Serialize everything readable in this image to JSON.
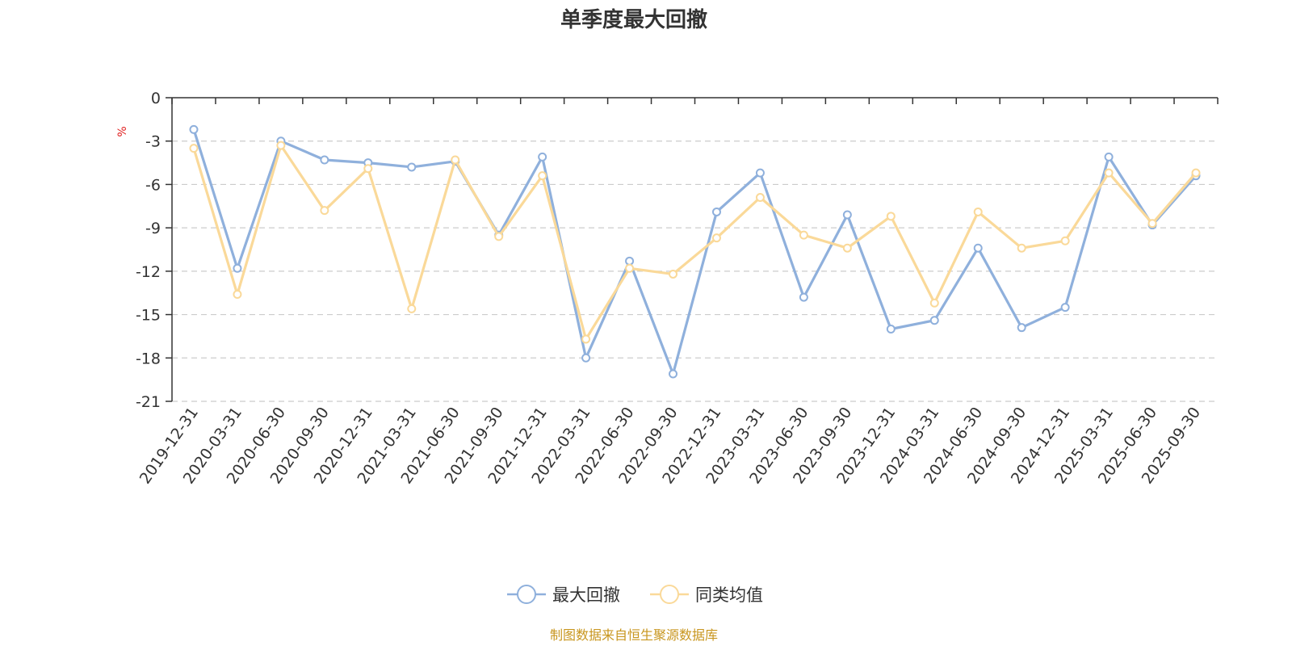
{
  "chart_data": {
    "type": "line",
    "title": "单季度最大回撤",
    "y_unit": "%",
    "ylim": [
      -21,
      0
    ],
    "yticks": [
      0,
      -3,
      -6,
      -9,
      -12,
      -15,
      -18,
      -21
    ],
    "grid": true,
    "legend_position": "bottom-center",
    "categories": [
      "2019-12-31",
      "2020-03-31",
      "2020-06-30",
      "2020-09-30",
      "2020-12-31",
      "2021-03-31",
      "2021-06-30",
      "2021-09-30",
      "2021-12-31",
      "2022-03-31",
      "2022-06-30",
      "2022-09-30",
      "2022-12-31",
      "2023-03-31",
      "2023-06-30",
      "2023-09-30",
      "2023-12-31",
      "2024-03-31",
      "2024-06-30",
      "2024-09-30",
      "2024-12-31",
      "2025-03-31",
      "2025-06-30",
      "2025-09-30"
    ],
    "series": [
      {
        "name": "最大回撤",
        "color": "#8fb0dc",
        "values": [
          -2.2,
          -11.8,
          -3.0,
          -4.3,
          -4.5,
          -4.8,
          -4.4,
          -9.5,
          -4.1,
          -18.0,
          -11.3,
          -19.1,
          -7.9,
          -5.2,
          -13.8,
          -8.1,
          -16.0,
          -15.4,
          -10.4,
          -15.9,
          -14.5,
          -4.1,
          -8.8,
          -5.4
        ]
      },
      {
        "name": "同类均值",
        "color": "#fad999",
        "values": [
          -3.5,
          -13.6,
          -3.3,
          -7.8,
          -4.9,
          -14.6,
          -4.3,
          -9.6,
          -5.4,
          -16.7,
          -11.8,
          -12.2,
          -9.7,
          -6.9,
          -9.5,
          -10.4,
          -8.2,
          -14.2,
          -7.9,
          -10.4,
          -9.9,
          -5.2,
          -8.7,
          -5.2
        ]
      }
    ]
  },
  "footer": {
    "source": "制图数据来自恒生聚源数据库"
  }
}
